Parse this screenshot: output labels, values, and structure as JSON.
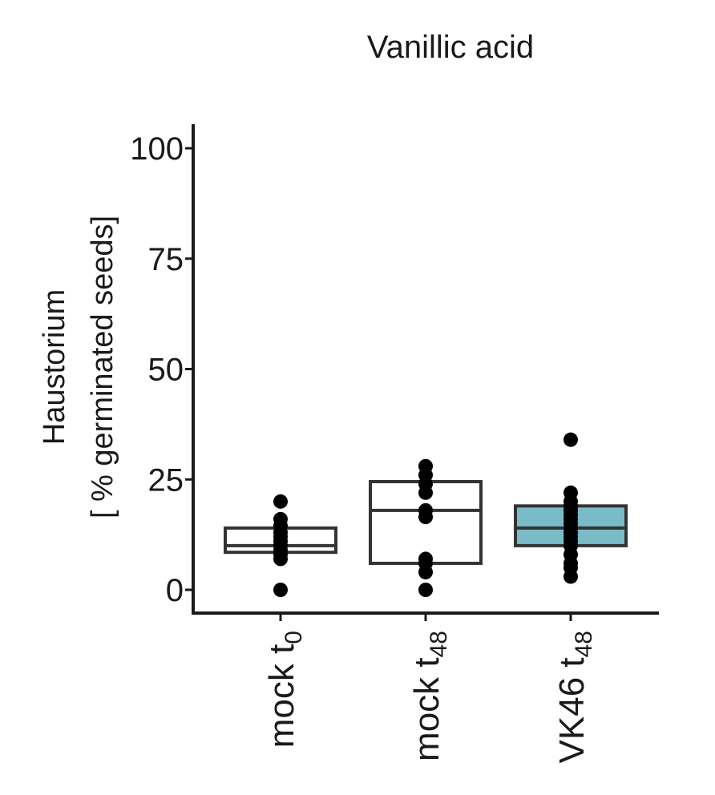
{
  "chart_data": {
    "type": "box",
    "title": "Vanillic acid",
    "ylabel_lines": [
      "Haustorium",
      "[ % germinated seeds]"
    ],
    "xlabel": "",
    "ylim": [
      0,
      100
    ],
    "yticks": [
      0,
      25,
      50,
      75,
      100
    ],
    "grid": false,
    "legend": "none",
    "categories": [
      {
        "base": "mock t",
        "sub": "0"
      },
      {
        "base": "mock t",
        "sub": "48"
      },
      {
        "base": "VK46 t",
        "sub": "48"
      }
    ],
    "boxes": [
      {
        "q1": 8.5,
        "median": 10,
        "q3": 14,
        "fill": "#ffffff",
        "points": [
          0,
          7,
          8,
          9,
          10,
          11,
          12,
          13,
          14.5,
          16,
          20
        ]
      },
      {
        "q1": 6,
        "median": 18,
        "q3": 24.5,
        "fill": "#ffffff",
        "points": [
          0,
          4,
          6,
          7,
          16.5,
          18,
          22,
          24,
          26,
          28
        ]
      },
      {
        "q1": 10,
        "median": 14,
        "q3": 19,
        "fill": "#79bcc7",
        "points": [
          3,
          5,
          6,
          8,
          10,
          11,
          12,
          13,
          14,
          15,
          16,
          17,
          18,
          19,
          20,
          22,
          34
        ]
      }
    ],
    "colors": {
      "axis": "#1a1a1a",
      "box_stroke": "#333333",
      "point": "#000000"
    }
  }
}
